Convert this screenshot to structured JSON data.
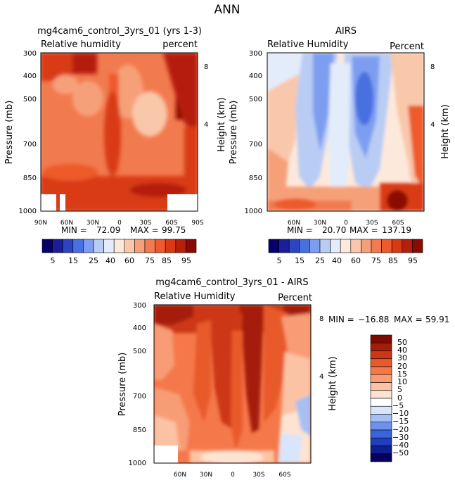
{
  "figure": {
    "title": "ANN"
  },
  "colors": {
    "rh": [
      "#08006b",
      "#1a1e99",
      "#2c44c4",
      "#4a6fe0",
      "#7d9ef0",
      "#b9ccf4",
      "#e3ecfa",
      "#fde9dc",
      "#f9c7aa",
      "#f6a079",
      "#f27a4f",
      "#ee5a2c",
      "#d93a14",
      "#b51f0b",
      "#8c0a04"
    ],
    "diff": [
      "#07005c",
      "#0f1f8f",
      "#1f3fbe",
      "#3a63dc",
      "#6e91ee",
      "#a6c0f4",
      "#d8e5fa",
      "#ffffff",
      "#fde3d2",
      "#fbc3a4",
      "#f89c74",
      "#f5784b",
      "#e85a2a",
      "#cc3813",
      "#a51d08",
      "#7f0a03"
    ]
  },
  "chart_data": [
    {
      "type": "heatmap",
      "panel": "top-left",
      "title": "mg4cam6_control_3yrs_01 (yrs 1-3)",
      "left_label": "Relative humidity",
      "right_label": "percent",
      "ylabel": "Pressure (mb)",
      "y2label": "Height (km)",
      "x_ticks": [
        "90N",
        "60N",
        "30N",
        "0",
        "30S",
        "60S",
        "90S"
      ],
      "y_ticks": [
        "300",
        "400",
        "500",
        "700",
        "850",
        "1000"
      ],
      "y2_ticks": [
        "8",
        "4"
      ],
      "stats": {
        "min_label": "MIN =",
        "min": "72.09",
        "max_label": "MAX =",
        "max": "99.75"
      },
      "colorbar": {
        "labels": [
          "5",
          "15",
          "25",
          "40",
          "60",
          "75",
          "85",
          "95"
        ]
      }
    },
    {
      "type": "heatmap",
      "panel": "top-right",
      "title": "AIRS",
      "left_label": "Relative Humidity",
      "right_label": "Percent",
      "ylabel": "Pressure (mb)",
      "y2label": "Height (km)",
      "x_ticks": [
        "60N",
        "30N",
        "0",
        "30S",
        "60S"
      ],
      "y_ticks": [
        "300",
        "400",
        "500",
        "700",
        "850",
        "1000"
      ],
      "y2_ticks": [
        "8",
        "4"
      ],
      "stats": {
        "min_label": "MIN =",
        "min": "20.70",
        "max_label": "MAX =",
        "max": "137.19"
      },
      "colorbar": {
        "labels": [
          "5",
          "15",
          "25",
          "40",
          "60",
          "75",
          "85",
          "95"
        ]
      }
    },
    {
      "type": "heatmap",
      "panel": "bottom",
      "title": "mg4cam6_control_3yrs_01 - AIRS",
      "left_label": "Relative Humidity",
      "right_label": "Percent",
      "ylabel": "Pressure (mb)",
      "y2label": "Height (km)",
      "x_ticks": [
        "60N",
        "30N",
        "0",
        "30S",
        "60S"
      ],
      "y_ticks": [
        "300",
        "400",
        "500",
        "700",
        "850",
        "1000"
      ],
      "y2_ticks": [
        "8",
        "4"
      ],
      "stats": {
        "min_label": "MIN =",
        "min": "−16.88",
        "max_label": "MAX =",
        "max": "59.91"
      },
      "colorbar": {
        "labels": [
          "50",
          "40",
          "30",
          "20",
          "15",
          "10",
          "5",
          "0",
          "−5",
          "−10",
          "−15",
          "−20",
          "−30",
          "−40",
          "−50"
        ]
      }
    }
  ]
}
